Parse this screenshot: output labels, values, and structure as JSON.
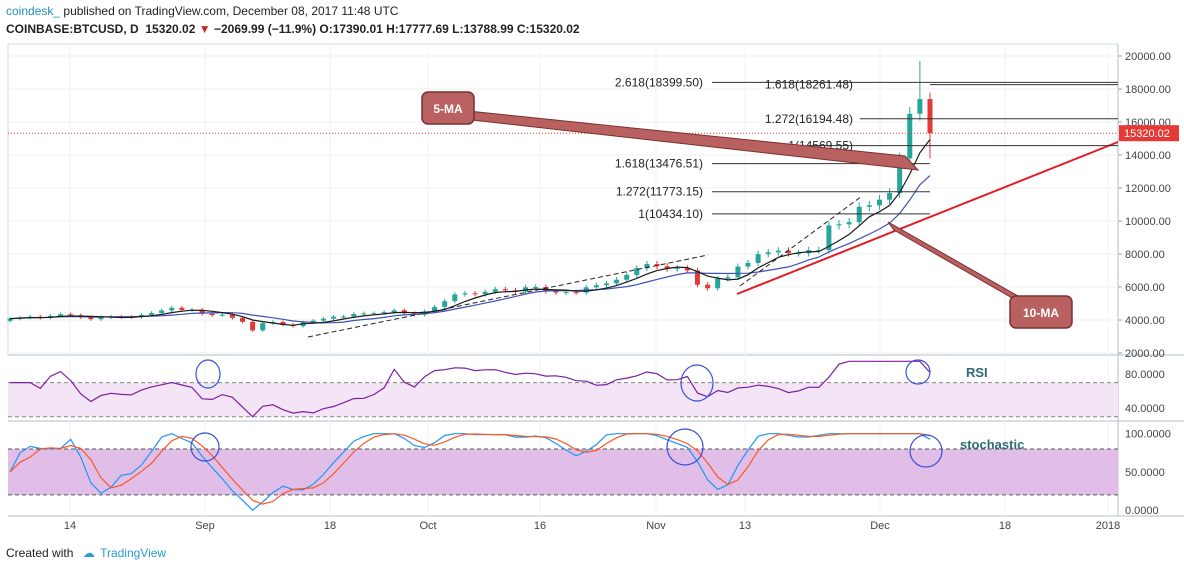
{
  "header": {
    "brand": "coindesk_",
    "published": "published on TradingView.com, December 08, 2017 11:48 UTC",
    "symbol": "COINBASE:BTCUSD, D",
    "last": "15320.02",
    "arrow": "▼",
    "change": "−2069.99 (−11.9%)",
    "ohlc": "O:17390.01 H:17777.69 L:13788.99 C:15320.02"
  },
  "footer": {
    "created_with": "Created with",
    "tradingview": "TradingView"
  },
  "colors": {
    "up": "#26a69a",
    "down": "#e53935",
    "ma5": "#1a1a1a",
    "ma10": "#3f51b5",
    "rsi": "#7b1fa2",
    "stoch_k": "#2196f3",
    "stoch_d": "#ff5722",
    "callout_fill": "#b96060",
    "trend": "#e51c23",
    "price_badge": "#e53935"
  },
  "chart_data": [
    {
      "type": "candlestick",
      "title": "COINBASE:BTCUSD, D",
      "x_ticks": [
        "14",
        "Sep",
        "18",
        "Oct",
        "16",
        "Nov",
        "13",
        "Dec",
        "18",
        "2018"
      ],
      "y_ticks": [
        "20000.00",
        "18000.00",
        "16000.00",
        "14000.00",
        "12000.00",
        "10000.00",
        "8000.00",
        "6000.00",
        "4000.00",
        "2000.00"
      ],
      "ylim": [
        2000,
        20000
      ],
      "last_price_label": "15320.02",
      "series_close": [
        4080,
        4150,
        4200,
        4130,
        4250,
        4350,
        4290,
        4160,
        4050,
        4160,
        4210,
        4190,
        4180,
        4310,
        4420,
        4580,
        4740,
        4610,
        4620,
        4380,
        4300,
        4320,
        4130,
        3890,
        3370,
        3810,
        3880,
        3710,
        3630,
        3860,
        3960,
        4080,
        4200,
        4210,
        4360,
        4400,
        4410,
        4480,
        4590,
        4410,
        4320,
        4520,
        4790,
        5140,
        5550,
        5620,
        5570,
        5710,
        5870,
        5800,
        5730,
        5980,
        6000,
        5740,
        5660,
        5690,
        5670,
        5980,
        6110,
        6220,
        6440,
        6730,
        7140,
        7390,
        7260,
        7100,
        7140,
        7000,
        6140,
        5920,
        6500,
        6590,
        7240,
        7460,
        7990,
        8100,
        8200,
        8050,
        8050,
        8230,
        8240,
        9730,
        9800,
        9930,
        10860,
        10950,
        11290,
        11700,
        13800,
        16500,
        17390,
        15320
      ],
      "fibonacci_levels": [
        {
          "label": "2.618(18399.50)",
          "value": 18399.5
        },
        {
          "label": "1.618(18261.48)",
          "value": 18261.48
        },
        {
          "label": "1.272(16194.48)",
          "value": 16194.48
        },
        {
          "label": "1(14569.55)",
          "value": 14569.55
        },
        {
          "label": "1.618(13476.51)",
          "value": 13476.51
        },
        {
          "label": "1.272(11773.15)",
          "value": 11773.15
        },
        {
          "label": "1(10434.10)",
          "value": 10434.1
        }
      ],
      "annotations": [
        "5-MA",
        "10-MA"
      ]
    },
    {
      "type": "line",
      "title": "RSI",
      "y_ticks": [
        "80.0000",
        "40.0000"
      ],
      "ylim": [
        25,
        100
      ],
      "bands": [
        70,
        30
      ]
    },
    {
      "type": "line",
      "title": "stochastic",
      "y_ticks": [
        "100.0000",
        "50.0000",
        "0.0000"
      ],
      "ylim": [
        -5,
        110
      ],
      "bands": [
        80,
        20
      ]
    }
  ]
}
